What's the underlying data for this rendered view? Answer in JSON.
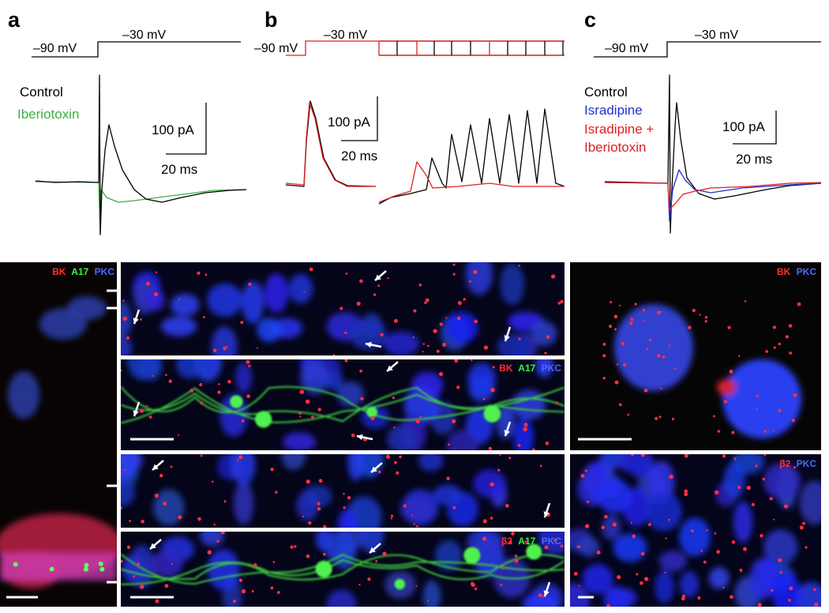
{
  "panels": [
    {
      "label": "a",
      "voltage_low": "–90 mV",
      "voltage_high": "–30 mV",
      "legend": [
        "Control",
        "Iberiotoxin"
      ],
      "scale_current": "100 pA",
      "scale_time": "20 ms"
    },
    {
      "label": "b",
      "voltage_low": "–90 mV",
      "voltage_high": "–30 mV",
      "scale_current": "100 pA",
      "scale_time": "20 ms"
    },
    {
      "label": "c",
      "voltage_low": "–90 mV",
      "voltage_high": "–30 mV",
      "legend": [
        "Control",
        "Isradipine",
        "Isradipine +",
        "Iberiotoxin"
      ],
      "scale_current": "100 pA",
      "scale_time": "20 ms"
    }
  ],
  "image_labels": {
    "left": [
      "BK",
      "A17",
      "PKC"
    ],
    "middle_second": [
      "BK",
      "A17",
      "PKC"
    ],
    "middle_fourth": [
      "β2",
      "A17",
      "PKC"
    ],
    "right_top": [
      "BK",
      "PKC"
    ],
    "right_bottom": [
      "β2",
      "PKC"
    ]
  }
}
